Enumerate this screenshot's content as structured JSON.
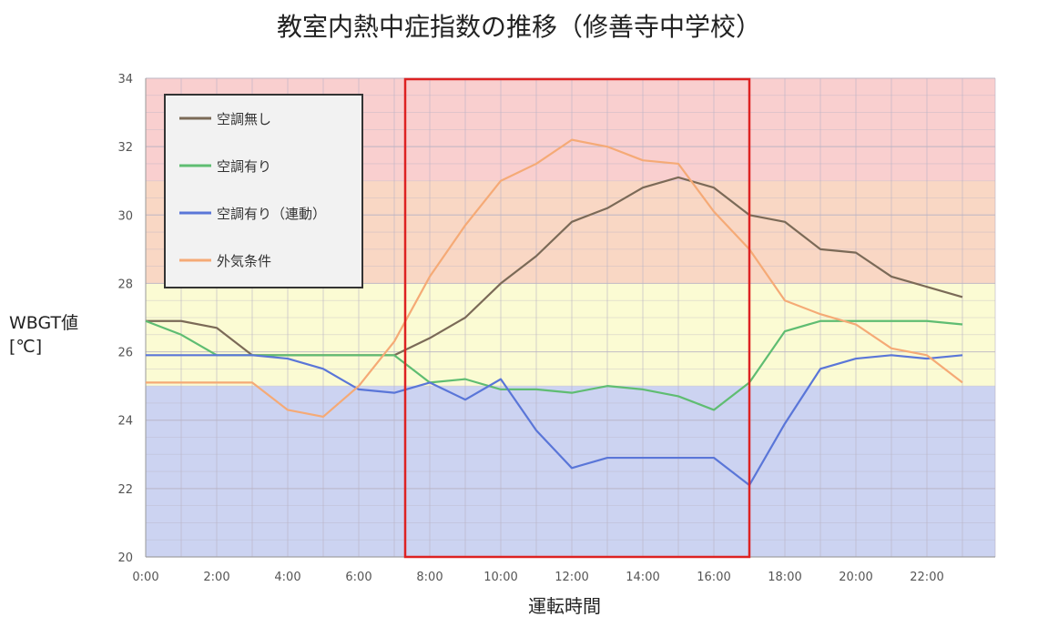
{
  "chart_data": {
    "type": "line",
    "title": "教室内熱中症指数の推移（修善寺中学校）",
    "xlabel": "運転時間",
    "ylabel_line1": "WBGT値",
    "ylabel_line2": "[℃]",
    "ylim": [
      20,
      34
    ],
    "yticks": [
      "20",
      "22",
      "24",
      "26",
      "28",
      "30",
      "32",
      "34"
    ],
    "x": [
      "0:00",
      "1:00",
      "2:00",
      "3:00",
      "4:00",
      "5:00",
      "6:00",
      "7:00",
      "8:00",
      "9:00",
      "10:00",
      "11:00",
      "12:00",
      "13:00",
      "14:00",
      "15:00",
      "16:00",
      "17:00",
      "18:00",
      "19:00",
      "20:00",
      "21:00",
      "22:00",
      "23:00"
    ],
    "xtick_labels": [
      "0:00",
      "2:00",
      "4:00",
      "6:00",
      "8:00",
      "10:00",
      "12:00",
      "14:00",
      "16:00",
      "18:00",
      "20:00",
      "22:00"
    ],
    "grid": true,
    "legend_position": "top-left",
    "bands": [
      {
        "from": 20,
        "to": 25,
        "color": "#ccd3f1"
      },
      {
        "from": 25,
        "to": 28,
        "color": "#fbfbd3"
      },
      {
        "from": 28,
        "to": 31,
        "color": "#f9d7c4"
      },
      {
        "from": 31,
        "to": 34,
        "color": "#f9cfcf"
      }
    ],
    "highlight_range": {
      "from": "7:00",
      "to": "17:00",
      "color": "#dd2222"
    },
    "series": [
      {
        "name": "空調無し",
        "color": "#7b6a57",
        "values": [
          26.9,
          26.9,
          26.7,
          25.9,
          25.9,
          25.9,
          25.9,
          25.9,
          26.4,
          27.0,
          28.0,
          28.8,
          29.8,
          30.2,
          30.8,
          31.1,
          30.8,
          30.0,
          29.8,
          29.0,
          28.9,
          28.2,
          27.9,
          27.6
        ]
      },
      {
        "name": "空調有り",
        "color": "#5fbd72",
        "values": [
          26.9,
          26.5,
          25.9,
          25.9,
          25.9,
          25.9,
          25.9,
          25.9,
          25.1,
          25.2,
          24.9,
          24.9,
          24.8,
          25.0,
          24.9,
          24.7,
          24.3,
          25.1,
          26.6,
          26.9,
          26.9,
          26.9,
          26.9,
          26.8
        ]
      },
      {
        "name": "空調有り（連動）",
        "color": "#5a76d8",
        "values": [
          25.9,
          25.9,
          25.9,
          25.9,
          25.8,
          25.5,
          24.9,
          24.8,
          25.1,
          24.6,
          25.2,
          23.7,
          22.6,
          22.9,
          22.9,
          22.9,
          22.9,
          22.1,
          23.9,
          25.5,
          25.8,
          25.9,
          25.8,
          25.9
        ]
      },
      {
        "name": "外気条件",
        "color": "#f5aa76",
        "values": [
          25.1,
          25.1,
          25.1,
          25.1,
          24.3,
          24.1,
          25.0,
          26.3,
          28.2,
          29.7,
          31.0,
          31.5,
          32.2,
          32.0,
          31.6,
          31.5,
          30.1,
          29.0,
          27.5,
          27.1,
          26.8,
          26.1,
          25.9,
          25.1
        ]
      }
    ]
  }
}
